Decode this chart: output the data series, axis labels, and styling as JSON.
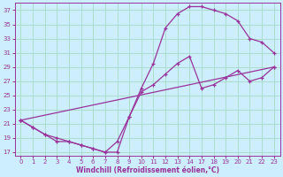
{
  "xlabel": "Windchill (Refroidissement éolien,°C)",
  "bg_color": "#cceeff",
  "grid_color": "#aaddcc",
  "line_color": "#993399",
  "xlim": [
    -0.5,
    23.5
  ],
  "ylim": [
    16.5,
    38
  ],
  "xticks": [
    0,
    1,
    2,
    3,
    4,
    5,
    6,
    7,
    8,
    9,
    10,
    11,
    12,
    13,
    14,
    17,
    18,
    19,
    20,
    21,
    22,
    23
  ],
  "yticks": [
    17,
    19,
    21,
    23,
    25,
    27,
    29,
    31,
    33,
    35,
    37
  ],
  "line1_x": [
    0,
    1,
    2,
    3,
    4,
    5,
    6,
    7,
    8,
    9,
    10,
    11,
    12,
    13,
    14,
    17,
    18,
    19,
    20,
    21,
    22,
    23
  ],
  "line1_y": [
    21.5,
    20.5,
    19.5,
    18.5,
    18.5,
    18.0,
    17.5,
    17.0,
    17.0,
    22.0,
    26.0,
    29.5,
    34.5,
    36.5,
    37.5,
    37.5,
    37.0,
    36.5,
    35.5,
    33.0,
    32.5,
    31.0
  ],
  "line2_x": [
    0,
    1,
    2,
    3,
    4,
    5,
    6,
    7,
    8,
    9,
    10,
    11,
    12,
    13,
    14,
    17,
    18,
    19,
    20,
    21,
    22,
    23
  ],
  "line2_y": [
    21.5,
    20.5,
    19.5,
    19.0,
    18.5,
    18.0,
    17.5,
    17.0,
    18.5,
    22.0,
    25.5,
    26.5,
    28.0,
    29.5,
    30.5,
    26.0,
    26.5,
    27.5,
    28.5,
    27.0,
    27.5,
    29.0
  ],
  "line3_x": [
    0,
    23
  ],
  "line3_y": [
    21.5,
    29.0
  ],
  "xtick_labels": [
    "0",
    "1",
    "2",
    "3",
    "4",
    "5",
    "6",
    "7",
    "8",
    "9",
    "10",
    "11",
    "12",
    "13",
    "14",
    "17",
    "18",
    "19",
    "20",
    "21",
    "22",
    "23"
  ]
}
